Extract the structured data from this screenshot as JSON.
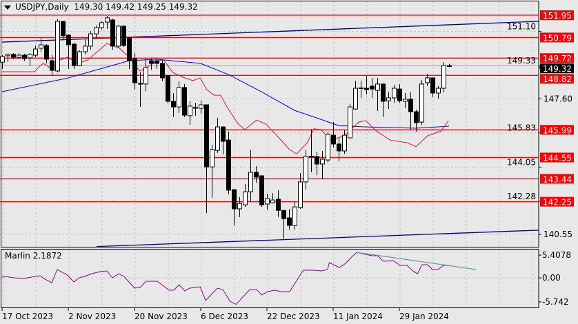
{
  "header": {
    "symbol": "USDJPY,Daily",
    "ohlc": "149.30 149.42 149.25 149.32"
  },
  "indicator": {
    "label": "Marlin 2.1872",
    "axis_labels": [
      "5.4078",
      "0.00",
      "-5.742"
    ],
    "axis_values": [
      5.4078,
      0,
      -5.742
    ],
    "line_color": "#8b008b",
    "trend_color": "#5f9ea0",
    "points": [
      [
        0.0,
        0.16
      ],
      [
        0.6,
        0.33
      ],
      [
        2.1,
        0.0
      ],
      [
        4.0,
        -0.16
      ],
      [
        5.3,
        0.16
      ],
      [
        6.9,
        0.49
      ],
      [
        7.8,
        -0.33
      ],
      [
        9.0,
        -1.15
      ],
      [
        10.0,
        1.97
      ],
      [
        11.8,
        0.66
      ],
      [
        13.0,
        -0.98
      ],
      [
        14.0,
        0.0
      ],
      [
        14.9,
        0.33
      ],
      [
        16.3,
        0.98
      ],
      [
        17.8,
        1.48
      ],
      [
        19.0,
        1.64
      ],
      [
        20.0,
        0.0
      ],
      [
        21.1,
        0.98
      ],
      [
        22.1,
        0.33
      ],
      [
        24.0,
        -2.46
      ],
      [
        25.0,
        -2.3
      ],
      [
        26.1,
        -0.82
      ],
      [
        28.1,
        -0.82
      ],
      [
        30.3,
        -2.95
      ],
      [
        31.1,
        -2.95
      ],
      [
        32.1,
        -1.64
      ],
      [
        33.1,
        -3.12
      ],
      [
        34.0,
        -2.46
      ],
      [
        35.9,
        -2.13
      ],
      [
        36.9,
        -5.41
      ],
      [
        39.0,
        -2.46
      ],
      [
        40.0,
        -2.79
      ],
      [
        41.3,
        -5.58
      ],
      [
        42.4,
        -6.3
      ],
      [
        43.6,
        -4.6
      ],
      [
        44.9,
        -2.8
      ],
      [
        46.1,
        -2.8
      ],
      [
        47.1,
        -4.1
      ],
      [
        48.1,
        -3.3
      ],
      [
        49.4,
        -2.95
      ],
      [
        50.6,
        -3.3
      ],
      [
        52.1,
        -3.3
      ],
      [
        54.6,
        1.8
      ],
      [
        56.5,
        1.8
      ],
      [
        57.8,
        1.64
      ],
      [
        59.0,
        1.97
      ],
      [
        59.3,
        3.61
      ],
      [
        61.1,
        2.46
      ],
      [
        62.1,
        3.28
      ],
      [
        63.6,
        5.25
      ],
      [
        64.3,
        6.07
      ],
      [
        65.9,
        5.58
      ],
      [
        67.1,
        5.25
      ],
      [
        68.1,
        5.25
      ],
      [
        68.8,
        4.26
      ],
      [
        69.3,
        3.94
      ],
      [
        70.9,
        4.1
      ],
      [
        72.1,
        2.95
      ],
      [
        73.4,
        2.95
      ],
      [
        74.6,
        1.48
      ],
      [
        75.3,
        0.98
      ],
      [
        76.1,
        3.12
      ],
      [
        77.1,
        3.12
      ],
      [
        78.0,
        1.97
      ],
      [
        79.0,
        1.97
      ],
      [
        80.0,
        2.95
      ],
      [
        81.0,
        2.9
      ]
    ],
    "trendline": [
      [
        64.2,
        6.07
      ],
      [
        85.9,
        1.97
      ]
    ]
  },
  "price_axis": {
    "grid_labels": [
      "151.10",
      "149.33",
      "147.60",
      "145.83",
      "144.05",
      "142.28",
      "140.55"
    ],
    "current_price": "149.32"
  },
  "levels": {
    "color": "#ff0000",
    "values": [
      "151.95",
      "150.79",
      "149.72",
      "148.82",
      "145.99",
      "144.55",
      "143.44",
      "142.25"
    ]
  },
  "time_axis": {
    "labels": [
      "17 Oct 2023",
      "2 Nov 2023",
      "20 Nov 2023",
      "6 Dec 2023",
      "22 Dec 2023",
      "11 Jan 2024",
      "29 Jan 2024"
    ]
  },
  "chart_data": {
    "type": "candlestick",
    "title": "USDJPY,Daily",
    "ylim": [
      139.9,
      152.7
    ],
    "candles_ohlc": [
      [
        149.51,
        149.87,
        149.15,
        149.8
      ],
      [
        149.84,
        149.94,
        149.51,
        149.91
      ],
      [
        149.91,
        149.98,
        149.66,
        149.76
      ],
      [
        149.76,
        149.98,
        149.66,
        149.87
      ],
      [
        149.87,
        149.94,
        149.58,
        149.69
      ],
      [
        149.73,
        149.98,
        149.3,
        149.91
      ],
      [
        149.87,
        150.37,
        149.76,
        150.19
      ],
      [
        150.23,
        150.77,
        150.05,
        150.41
      ],
      [
        150.37,
        150.44,
        149.44,
        149.66
      ],
      [
        149.58,
        149.87,
        148.8,
        149.08
      ],
      [
        149.05,
        151.74,
        148.98,
        151.63
      ],
      [
        151.63,
        151.63,
        150.66,
        150.88
      ],
      [
        150.91,
        150.95,
        149.15,
        150.41
      ],
      [
        150.44,
        150.52,
        149.15,
        149.33
      ],
      [
        149.33,
        150.12,
        149.3,
        150.05
      ],
      [
        150.05,
        150.7,
        149.91,
        150.34
      ],
      [
        150.34,
        151.13,
        150.16,
        150.98
      ],
      [
        150.98,
        151.41,
        150.77,
        151.3
      ],
      [
        151.3,
        151.63,
        151.2,
        151.56
      ],
      [
        151.59,
        151.91,
        151.23,
        151.81
      ],
      [
        151.7,
        151.77,
        150.16,
        150.34
      ],
      [
        150.34,
        151.41,
        150.23,
        151.38
      ],
      [
        151.38,
        151.41,
        150.3,
        150.37
      ],
      [
        150.77,
        150.77,
        149.15,
        149.58
      ],
      [
        149.69,
        149.98,
        148.08,
        148.44
      ],
      [
        148.4,
        148.98,
        147.18,
        148.4
      ],
      [
        148.37,
        149.69,
        148.01,
        149.23
      ],
      [
        149.58,
        149.73,
        149.12,
        149.44
      ],
      [
        149.58,
        149.69,
        149.15,
        149.44
      ],
      [
        149.44,
        149.66,
        148.51,
        148.69
      ],
      [
        148.8,
        148.8,
        147.36,
        147.47
      ],
      [
        147.47,
        147.9,
        146.65,
        147.18
      ],
      [
        147.18,
        148.51,
        146.86,
        148.19
      ],
      [
        148.19,
        148.37,
        146.65,
        146.75
      ],
      [
        146.72,
        147.47,
        146.25,
        147.22
      ],
      [
        147.15,
        147.4,
        146.72,
        147.15
      ],
      [
        147.11,
        147.5,
        146.82,
        147.29
      ],
      [
        147.29,
        147.29,
        141.66,
        144.06
      ],
      [
        144.06,
        145.21,
        142.45,
        144.96
      ],
      [
        144.92,
        146.61,
        144.78,
        146.14
      ],
      [
        146.14,
        146.18,
        144.71,
        145.39
      ],
      [
        145.46,
        145.89,
        142.63,
        142.85
      ],
      [
        142.88,
        142.88,
        141.01,
        141.88
      ],
      [
        141.88,
        142.49,
        141.45,
        142.16
      ],
      [
        142.09,
        143.17,
        141.98,
        142.77
      ],
      [
        142.77,
        144.96,
        142.27,
        143.78
      ],
      [
        143.78,
        144.1,
        143.24,
        143.53
      ],
      [
        143.6,
        143.6,
        141.98,
        142.09
      ],
      [
        142.13,
        142.66,
        141.84,
        142.41
      ],
      [
        142.2,
        142.7,
        142.16,
        142.34
      ],
      [
        142.38,
        142.85,
        141.45,
        141.8
      ],
      [
        141.8,
        141.8,
        140.26,
        141.37
      ],
      [
        141.41,
        141.88,
        140.8,
        141.02
      ],
      [
        141.01,
        142.24,
        140.8,
        141.98
      ],
      [
        141.95,
        143.74,
        141.88,
        143.28
      ],
      [
        143.28,
        144.96,
        142.88,
        144.6
      ],
      [
        144.6,
        146.04,
        143.78,
        144.62
      ],
      [
        144.6,
        144.85,
        143.63,
        144.21
      ],
      [
        144.21,
        144.89,
        143.42,
        144.46
      ],
      [
        144.42,
        145.86,
        144.28,
        145.75
      ],
      [
        145.71,
        146.39,
        145.07,
        145.25
      ],
      [
        145.25,
        145.61,
        144.35,
        144.89
      ],
      [
        144.89,
        146.0,
        144.74,
        145.71
      ],
      [
        145.57,
        147.33,
        145.57,
        147.18
      ],
      [
        147.07,
        148.55,
        147.04,
        148.15
      ],
      [
        148.15,
        148.55,
        147.65,
        148.17
      ],
      [
        148.15,
        148.8,
        147.83,
        148.08
      ],
      [
        148.26,
        148.69,
        147.65,
        148.11
      ],
      [
        148.04,
        148.69,
        146.97,
        148.37
      ],
      [
        148.37,
        148.4,
        146.65,
        147.47
      ],
      [
        147.5,
        147.97,
        147.07,
        147.65
      ],
      [
        147.65,
        148.33,
        147.4,
        148.15
      ],
      [
        148.11,
        148.37,
        147.4,
        147.5
      ],
      [
        147.47,
        147.9,
        147.11,
        147.58
      ],
      [
        147.58,
        147.93,
        146.0,
        146.93
      ],
      [
        146.93,
        147.04,
        145.89,
        146.36
      ],
      [
        146.39,
        148.58,
        146.25,
        148.37
      ],
      [
        148.44,
        148.9,
        148.26,
        148.69
      ],
      [
        148.69,
        148.69,
        147.68,
        147.9
      ],
      [
        147.9,
        148.26,
        147.61,
        148.15
      ],
      [
        148.15,
        149.51,
        147.93,
        149.33
      ],
      [
        149.3,
        149.42,
        149.25,
        149.32
      ]
    ],
    "ma_slow": {
      "color": "#0000ff",
      "points": [
        [
          0,
          147.97
        ],
        [
          12,
          148.69
        ],
        [
          23,
          149.58
        ],
        [
          28,
          149.66
        ],
        [
          36,
          149.44
        ],
        [
          41,
          148.87
        ],
        [
          47,
          147.97
        ],
        [
          53,
          147.0
        ],
        [
          57,
          146.61
        ],
        [
          61,
          146.21
        ],
        [
          66,
          146.14
        ],
        [
          75,
          146.07
        ],
        [
          81,
          146.18
        ]
      ]
    },
    "ma_fast": {
      "color": "#dc143c",
      "points": [
        [
          0,
          149.01
        ],
        [
          5.9,
          149.01
        ],
        [
          6.9,
          149.33
        ],
        [
          7.5,
          149.44
        ],
        [
          9,
          149.15
        ],
        [
          10.5,
          149.62
        ],
        [
          11.8,
          149.76
        ],
        [
          13.8,
          149.44
        ],
        [
          15.5,
          149.62
        ],
        [
          19,
          150.48
        ],
        [
          21.3,
          150.23
        ],
        [
          23,
          149.76
        ],
        [
          24.3,
          149.26
        ],
        [
          25,
          149.05
        ],
        [
          26.8,
          149.33
        ],
        [
          28,
          149.58
        ],
        [
          29.3,
          149.62
        ],
        [
          30.9,
          148.98
        ],
        [
          32.8,
          148.72
        ],
        [
          34.6,
          148.55
        ],
        [
          35.9,
          148.69
        ],
        [
          37.1,
          148.08
        ],
        [
          38.4,
          147.79
        ],
        [
          39.6,
          147.79
        ],
        [
          40.9,
          147.11
        ],
        [
          42.8,
          146.29
        ],
        [
          44,
          146.0
        ],
        [
          46.1,
          146.5
        ],
        [
          47.8,
          146.29
        ],
        [
          49.6,
          145.75
        ],
        [
          52.1,
          144.96
        ],
        [
          53.4,
          144.74
        ],
        [
          55.3,
          145.32
        ],
        [
          56.5,
          146.04
        ],
        [
          57.8,
          146.0
        ],
        [
          59.6,
          145.46
        ],
        [
          62.1,
          145.68
        ],
        [
          64.6,
          146.39
        ],
        [
          65.9,
          146.47
        ],
        [
          67.8,
          145.93
        ],
        [
          70.3,
          145.46
        ],
        [
          73.4,
          145.32
        ],
        [
          75,
          145.11
        ],
        [
          77.1,
          145.68
        ],
        [
          79.6,
          145.93
        ],
        [
          80.9,
          146.47
        ]
      ]
    },
    "trendlines": {
      "color": "#00008b",
      "upper": [
        [
          0,
          150.55
        ],
        [
          97.25,
          151.63
        ]
      ],
      "lower": [
        [
          17.1,
          139.92
        ],
        [
          97.25,
          140.77
        ]
      ]
    }
  }
}
